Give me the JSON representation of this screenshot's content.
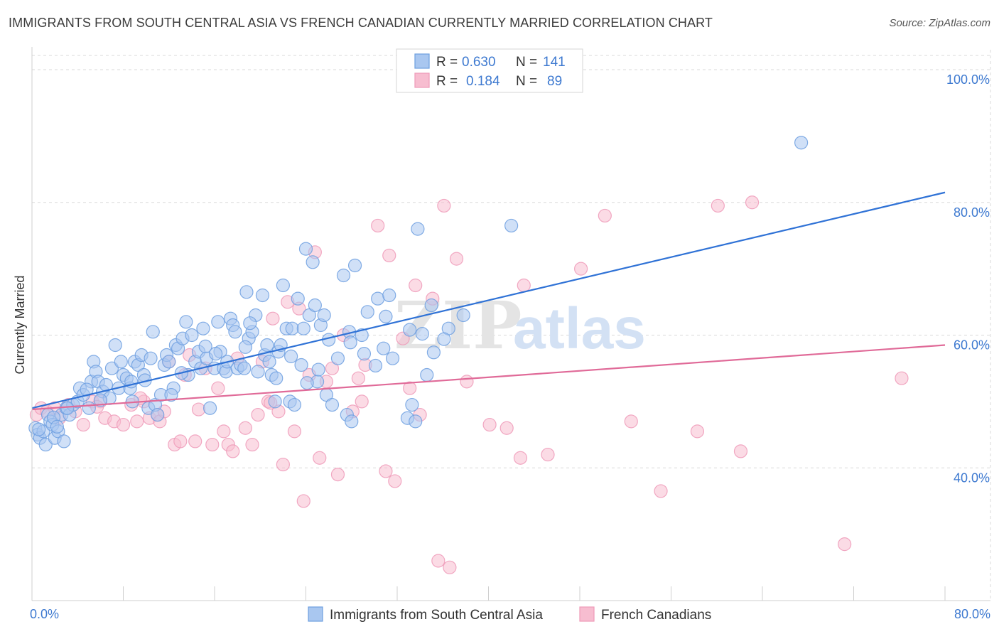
{
  "title": "IMMIGRANTS FROM SOUTH CENTRAL ASIA VS FRENCH CANADIAN CURRENTLY MARRIED CORRELATION CHART",
  "source": "Source: ZipAtlas.com",
  "watermark": {
    "zip": "ZIP",
    "atlas": "atlas"
  },
  "colors": {
    "blue_fill": "#a9c7f0",
    "blue_stroke": "#6d9fe0",
    "blue_line": "#2f72d6",
    "pink_fill": "#f7bdd0",
    "pink_stroke": "#ee9ab8",
    "pink_line": "#e06a98",
    "grid": "#d9d9d9",
    "tick_text": "#3d79d0"
  },
  "legend": {
    "r_label": "R =",
    "n_label": "N =",
    "rows": [
      {
        "series": "blue",
        "r": "0.630",
        "n": "141"
      },
      {
        "series": "pink",
        "r": "0.184",
        "n": "89"
      }
    ]
  },
  "chart_data": {
    "type": "scatter",
    "title": "IMMIGRANTS FROM SOUTH CENTRAL ASIA VS FRENCH CANADIAN CURRENTLY MARRIED CORRELATION CHART",
    "xlabel": "",
    "ylabel": "Currently Married",
    "xlim": [
      0,
      80
    ],
    "ylim": [
      20,
      103
    ],
    "x_tick_labels": [
      "0.0%",
      "80.0%"
    ],
    "y_ticks": [
      {
        "value": 40,
        "label": "40.0%"
      },
      {
        "value": 60,
        "label": "60.0%"
      },
      {
        "value": 80,
        "label": "80.0%"
      },
      {
        "value": 100,
        "label": "100.0%"
      }
    ],
    "series": [
      {
        "name": "Immigrants from South Central Asia",
        "color": "blue",
        "r": 0.63,
        "n": 141,
        "trend": {
          "x": [
            0,
            80
          ],
          "y": [
            49.0,
            81.5
          ]
        },
        "points": [
          [
            0.3,
            46
          ],
          [
            0.5,
            45
          ],
          [
            0.7,
            44.5
          ],
          [
            1,
            45.5
          ],
          [
            1.2,
            43.5
          ],
          [
            1.4,
            48
          ],
          [
            1.6,
            47
          ],
          [
            1.8,
            46.5
          ],
          [
            2,
            44.5
          ],
          [
            2.3,
            45.5
          ],
          [
            2.6,
            48
          ],
          [
            2.8,
            44
          ],
          [
            3,
            49
          ],
          [
            3.3,
            48
          ],
          [
            3.6,
            49.5
          ],
          [
            4,
            50
          ],
          [
            4.2,
            52
          ],
          [
            4.5,
            51
          ],
          [
            5,
            49
          ],
          [
            5.2,
            53
          ],
          [
            5.4,
            56
          ],
          [
            5.6,
            54.5
          ],
          [
            5.8,
            53
          ],
          [
            6.2,
            51.5
          ],
          [
            6.5,
            52.5
          ],
          [
            6.8,
            50.5
          ],
          [
            7,
            55
          ],
          [
            7.3,
            58.5
          ],
          [
            7.6,
            52
          ],
          [
            7.8,
            56
          ],
          [
            8,
            54
          ],
          [
            8.3,
            53.5
          ],
          [
            8.6,
            52
          ],
          [
            8.8,
            50
          ],
          [
            9,
            56
          ],
          [
            9.3,
            55.5
          ],
          [
            9.6,
            57
          ],
          [
            9.8,
            54
          ],
          [
            10.2,
            49
          ],
          [
            10.4,
            56.5
          ],
          [
            10.6,
            60.5
          ],
          [
            10.8,
            49.5
          ],
          [
            11,
            48
          ],
          [
            11.3,
            51
          ],
          [
            11.6,
            55.5
          ],
          [
            11.8,
            57
          ],
          [
            12,
            56
          ],
          [
            12.4,
            52
          ],
          [
            12.6,
            58.5
          ],
          [
            12.8,
            58
          ],
          [
            13.2,
            59.5
          ],
          [
            13.5,
            62
          ],
          [
            13.7,
            54
          ],
          [
            14,
            60
          ],
          [
            14.3,
            56
          ],
          [
            14.6,
            57.5
          ],
          [
            14.8,
            55
          ],
          [
            15,
            61
          ],
          [
            15.3,
            56.5
          ],
          [
            15.6,
            49
          ],
          [
            16,
            55
          ],
          [
            16.3,
            62
          ],
          [
            16.5,
            57.5
          ],
          [
            16.8,
            55
          ],
          [
            17,
            54.5
          ],
          [
            17.4,
            62.5
          ],
          [
            17.6,
            61.5
          ],
          [
            17.8,
            60.5
          ],
          [
            18,
            55
          ],
          [
            18.3,
            55.5
          ],
          [
            18.6,
            55
          ],
          [
            18.8,
            66.5
          ],
          [
            19,
            59.5
          ],
          [
            19.3,
            60.5
          ],
          [
            19.6,
            63
          ],
          [
            19.8,
            54.5
          ],
          [
            20.2,
            66
          ],
          [
            20.4,
            57
          ],
          [
            20.6,
            58.5
          ],
          [
            20.8,
            56
          ],
          [
            21,
            54
          ],
          [
            21.3,
            50
          ],
          [
            21.6,
            57.5
          ],
          [
            21.8,
            58.5
          ],
          [
            22,
            67.5
          ],
          [
            22.3,
            61
          ],
          [
            22.6,
            50
          ],
          [
            22.8,
            61
          ],
          [
            23,
            49.5
          ],
          [
            23.3,
            65.5
          ],
          [
            23.6,
            55.5
          ],
          [
            23.8,
            61
          ],
          [
            24,
            73
          ],
          [
            24.3,
            63
          ],
          [
            24.6,
            71
          ],
          [
            24.8,
            64.5
          ],
          [
            25,
            53
          ],
          [
            25.3,
            61.5
          ],
          [
            25.6,
            63
          ],
          [
            25.8,
            51
          ],
          [
            26.3,
            49.5
          ],
          [
            26.8,
            56.5
          ],
          [
            27.3,
            69
          ],
          [
            27.6,
            48
          ],
          [
            27.8,
            60.5
          ],
          [
            28,
            47
          ],
          [
            28.3,
            70.5
          ],
          [
            28.9,
            60
          ],
          [
            29.4,
            63.5
          ],
          [
            30.3,
            65.5
          ],
          [
            30.8,
            58
          ],
          [
            31.3,
            66
          ],
          [
            31.6,
            56.5
          ],
          [
            32.9,
            47.5
          ],
          [
            33.3,
            49.5
          ],
          [
            33.6,
            47
          ],
          [
            33.8,
            76
          ],
          [
            34.6,
            54
          ],
          [
            35,
            64.5
          ],
          [
            36.5,
            61
          ],
          [
            37.8,
            63
          ],
          [
            42,
            76.5
          ],
          [
            67.4,
            89
          ],
          [
            3.1,
            49
          ],
          [
            6,
            50.2
          ],
          [
            8.7,
            53
          ],
          [
            12.2,
            51
          ],
          [
            15.2,
            58.3
          ],
          [
            17.1,
            56
          ],
          [
            19.1,
            61.8
          ],
          [
            21.4,
            53.5
          ],
          [
            24.1,
            52.8
          ],
          [
            26,
            59.3
          ],
          [
            29.1,
            57.2
          ],
          [
            31,
            62.8
          ],
          [
            34.2,
            60.2
          ],
          [
            36.1,
            59.4
          ],
          [
            1.9,
            47.6
          ],
          [
            4.8,
            51.8
          ],
          [
            9.9,
            53.2
          ],
          [
            13.1,
            54.3
          ],
          [
            16.1,
            57.2
          ],
          [
            18.7,
            58.2
          ],
          [
            22.7,
            56.8
          ],
          [
            25.1,
            54.8
          ],
          [
            27.9,
            58.9
          ],
          [
            30.1,
            55.4
          ],
          [
            33.1,
            60.8
          ],
          [
            35.2,
            57.4
          ],
          [
            0.6,
            45.8
          ],
          [
            2.2,
            46.2
          ]
        ]
      },
      {
        "name": "French Canadians",
        "color": "pink",
        "r": 0.184,
        "n": 89,
        "trend": {
          "x": [
            0,
            80
          ],
          "y": [
            48.8,
            58.5
          ]
        },
        "points": [
          [
            0.4,
            48
          ],
          [
            0.8,
            49
          ],
          [
            1.3,
            48.5
          ],
          [
            2,
            49
          ],
          [
            2.4,
            47.5
          ],
          [
            3.2,
            49.5
          ],
          [
            3.8,
            48.5
          ],
          [
            4.5,
            46.5
          ],
          [
            5.3,
            50
          ],
          [
            6,
            50
          ],
          [
            6.4,
            47.5
          ],
          [
            7.2,
            47
          ],
          [
            8,
            46.5
          ],
          [
            8.7,
            49.5
          ],
          [
            9.2,
            47
          ],
          [
            9.8,
            50
          ],
          [
            10.3,
            47.5
          ],
          [
            11,
            48
          ],
          [
            11.2,
            47
          ],
          [
            11.6,
            48.5
          ],
          [
            12,
            56
          ],
          [
            12.5,
            43.5
          ],
          [
            13,
            44
          ],
          [
            13.4,
            54
          ],
          [
            13.8,
            57
          ],
          [
            14.3,
            44
          ],
          [
            15.2,
            55
          ],
          [
            15.8,
            43.5
          ],
          [
            16.3,
            52
          ],
          [
            16.8,
            45.5
          ],
          [
            17.2,
            43.5
          ],
          [
            17.6,
            42.5
          ],
          [
            18,
            56.5
          ],
          [
            18.7,
            46
          ],
          [
            19.3,
            43.5
          ],
          [
            19.8,
            48
          ],
          [
            20.2,
            56
          ],
          [
            20.7,
            50
          ],
          [
            21.1,
            62.5
          ],
          [
            21.6,
            48.5
          ],
          [
            22,
            40.5
          ],
          [
            22.4,
            65
          ],
          [
            23,
            45.5
          ],
          [
            23.4,
            64
          ],
          [
            23.8,
            35
          ],
          [
            24.3,
            54
          ],
          [
            24.8,
            72.5
          ],
          [
            25.2,
            41.5
          ],
          [
            25.8,
            53
          ],
          [
            26.3,
            55
          ],
          [
            26.8,
            39
          ],
          [
            27.3,
            60
          ],
          [
            28.1,
            48.5
          ],
          [
            28.6,
            53.5
          ],
          [
            29.2,
            55.5
          ],
          [
            30.3,
            76.5
          ],
          [
            31,
            39.5
          ],
          [
            31.3,
            72
          ],
          [
            31.8,
            38
          ],
          [
            32.5,
            59.5
          ],
          [
            33.1,
            52
          ],
          [
            33.6,
            67.5
          ],
          [
            34,
            48
          ],
          [
            35.1,
            65.5
          ],
          [
            35.6,
            26
          ],
          [
            36.1,
            79.5
          ],
          [
            36.6,
            25
          ],
          [
            37.2,
            71.5
          ],
          [
            38.1,
            53
          ],
          [
            40.1,
            46.5
          ],
          [
            41.6,
            46
          ],
          [
            42.8,
            41.5
          ],
          [
            43.1,
            67.5
          ],
          [
            45.2,
            42
          ],
          [
            48.1,
            70
          ],
          [
            50.2,
            78
          ],
          [
            52.5,
            47
          ],
          [
            55.1,
            36.5
          ],
          [
            58.3,
            45.5
          ],
          [
            60.1,
            79.5
          ],
          [
            62.1,
            42.5
          ],
          [
            63.1,
            80
          ],
          [
            71.2,
            28.5
          ],
          [
            76.2,
            53.5
          ],
          [
            14.6,
            48.8
          ],
          [
            9.5,
            50.5
          ],
          [
            28.9,
            50
          ],
          [
            5.7,
            49.2
          ],
          [
            20.9,
            49.8
          ]
        ]
      }
    ]
  },
  "bottom_legend": [
    {
      "label": "Immigrants from South Central Asia",
      "color": "blue"
    },
    {
      "label": "French Canadians",
      "color": "pink"
    }
  ]
}
